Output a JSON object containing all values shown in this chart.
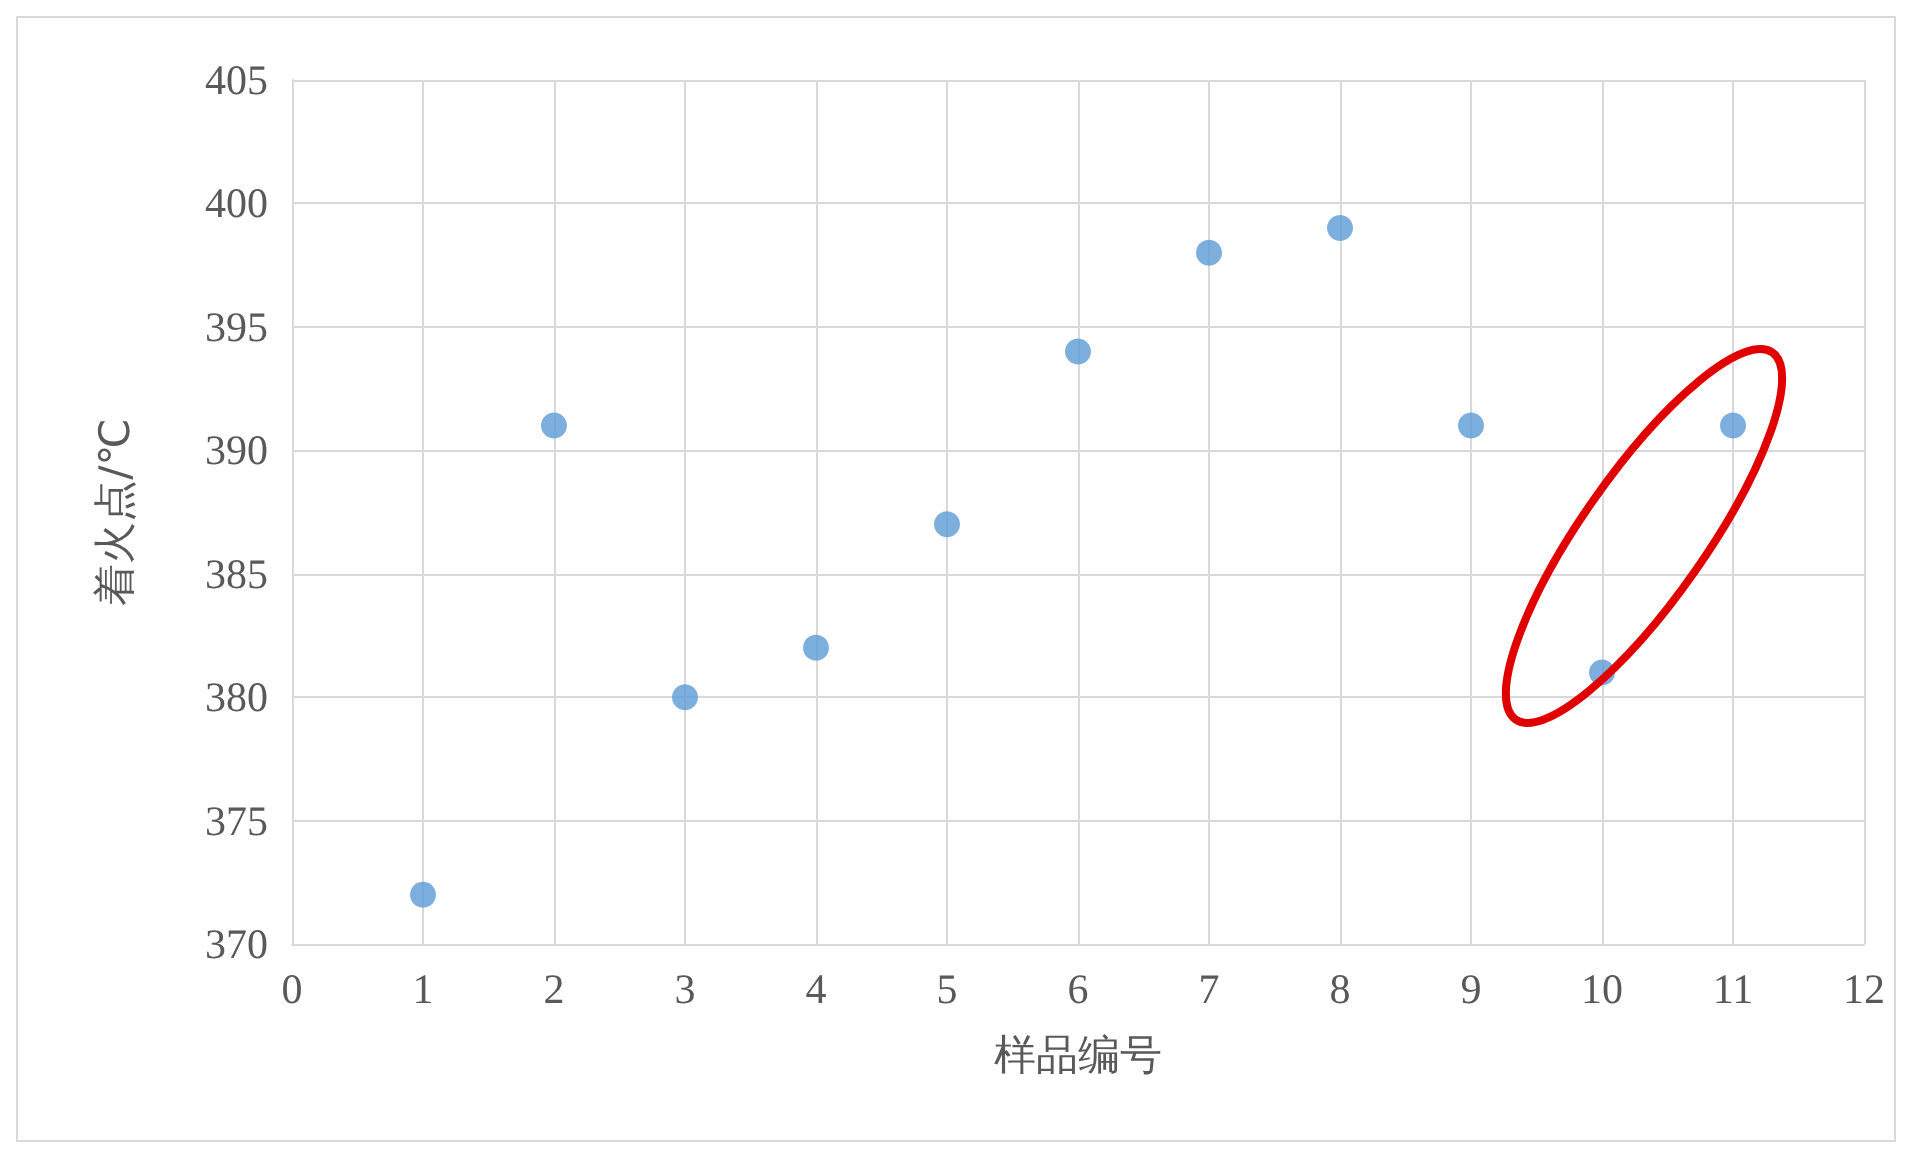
{
  "chart_data": {
    "type": "scatter",
    "xlabel": "样品编号",
    "ylabel": "着火点/℃",
    "x": [
      1,
      2,
      3,
      4,
      5,
      6,
      7,
      8,
      9,
      10,
      11
    ],
    "series": [
      {
        "color": "#5b9bd5",
        "values": [
          372,
          391,
          380,
          382,
          387,
          394,
          398,
          399,
          391,
          381,
          391
        ]
      }
    ],
    "xlim": [
      0,
      12
    ],
    "xticks": [
      0,
      1,
      2,
      3,
      4,
      5,
      6,
      7,
      8,
      9,
      10,
      11,
      12
    ],
    "ylim": [
      370,
      405
    ],
    "yticks": [
      370,
      375,
      380,
      385,
      390,
      395,
      400,
      405
    ],
    "grid": true,
    "marker": "circle"
  }
}
